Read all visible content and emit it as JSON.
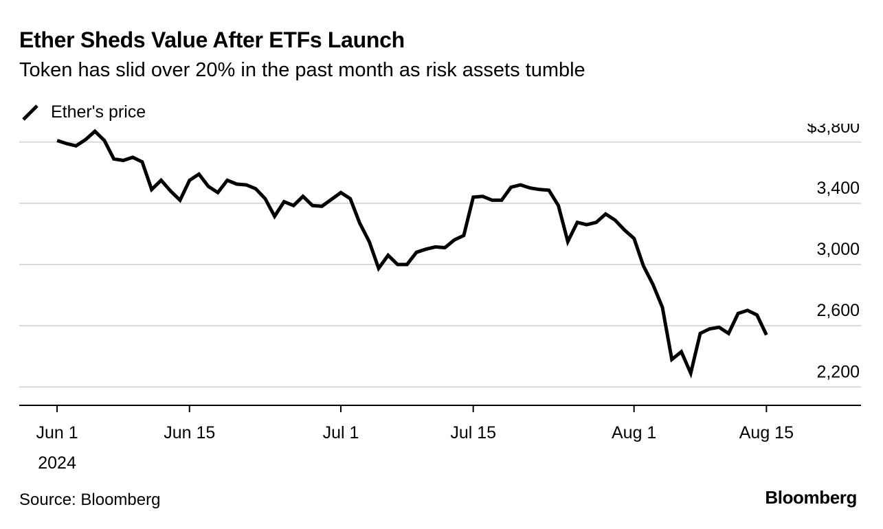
{
  "title": "Ether Sheds Value After ETFs Launch",
  "subtitle": "Token has slid over 20% in the past month as risk assets tumble",
  "legend": {
    "label": "Ether's price"
  },
  "source": "Source: Bloomberg",
  "brand": "Bloomberg",
  "colors": {
    "line": "#000000",
    "grid": "#d9d9d9",
    "axis": "#000000",
    "text": "#000000"
  },
  "chart_data": {
    "type": "line",
    "x_unit": "day",
    "x_tick_labels": [
      {
        "x": "2024-06-01",
        "label": "Jun 1",
        "sublabel": "2024"
      },
      {
        "x": "2024-06-15",
        "label": "Jun 15"
      },
      {
        "x": "2024-07-01",
        "label": "Jul 1"
      },
      {
        "x": "2024-07-15",
        "label": "Jul 15"
      },
      {
        "x": "2024-08-01",
        "label": "Aug 1"
      },
      {
        "x": "2024-08-15",
        "label": "Aug 15"
      }
    ],
    "y_ticks": [
      {
        "value": 3800,
        "label": "$3,800"
      },
      {
        "value": 3400,
        "label": "3,400"
      },
      {
        "value": 3000,
        "label": "3,000"
      },
      {
        "value": 2600,
        "label": "2,600"
      },
      {
        "value": 2200,
        "label": "2,200"
      }
    ],
    "ylim": [
      2080,
      3920
    ],
    "xlim": [
      "2024-05-28",
      "2024-08-25"
    ],
    "grid": true,
    "series": [
      {
        "name": "Ether's price",
        "points": [
          [
            "2024-06-01",
            3810
          ],
          [
            "2024-06-02",
            3790
          ],
          [
            "2024-06-03",
            3775
          ],
          [
            "2024-06-04",
            3815
          ],
          [
            "2024-06-05",
            3870
          ],
          [
            "2024-06-06",
            3810
          ],
          [
            "2024-06-07",
            3690
          ],
          [
            "2024-06-08",
            3680
          ],
          [
            "2024-06-09",
            3700
          ],
          [
            "2024-06-10",
            3670
          ],
          [
            "2024-06-11",
            3490
          ],
          [
            "2024-06-12",
            3550
          ],
          [
            "2024-06-13",
            3480
          ],
          [
            "2024-06-14",
            3420
          ],
          [
            "2024-06-15",
            3550
          ],
          [
            "2024-06-16",
            3590
          ],
          [
            "2024-06-17",
            3510
          ],
          [
            "2024-06-18",
            3470
          ],
          [
            "2024-06-19",
            3550
          ],
          [
            "2024-06-20",
            3525
          ],
          [
            "2024-06-21",
            3520
          ],
          [
            "2024-06-22",
            3495
          ],
          [
            "2024-06-23",
            3430
          ],
          [
            "2024-06-24",
            3315
          ],
          [
            "2024-06-25",
            3410
          ],
          [
            "2024-06-26",
            3385
          ],
          [
            "2024-06-27",
            3445
          ],
          [
            "2024-06-28",
            3385
          ],
          [
            "2024-06-29",
            3380
          ],
          [
            "2024-06-30",
            3425
          ],
          [
            "2024-07-01",
            3470
          ],
          [
            "2024-07-02",
            3430
          ],
          [
            "2024-07-03",
            3270
          ],
          [
            "2024-07-04",
            3150
          ],
          [
            "2024-07-05",
            2975
          ],
          [
            "2024-07-06",
            3060
          ],
          [
            "2024-07-07",
            3000
          ],
          [
            "2024-07-08",
            3000
          ],
          [
            "2024-07-09",
            3080
          ],
          [
            "2024-07-10",
            3100
          ],
          [
            "2024-07-11",
            3115
          ],
          [
            "2024-07-12",
            3110
          ],
          [
            "2024-07-13",
            3160
          ],
          [
            "2024-07-14",
            3190
          ],
          [
            "2024-07-15",
            3440
          ],
          [
            "2024-07-16",
            3445
          ],
          [
            "2024-07-17",
            3420
          ],
          [
            "2024-07-18",
            3420
          ],
          [
            "2024-07-19",
            3505
          ],
          [
            "2024-07-20",
            3520
          ],
          [
            "2024-07-21",
            3500
          ],
          [
            "2024-07-22",
            3490
          ],
          [
            "2024-07-23",
            3485
          ],
          [
            "2024-07-24",
            3385
          ],
          [
            "2024-07-25",
            3150
          ],
          [
            "2024-07-26",
            3275
          ],
          [
            "2024-07-27",
            3260
          ],
          [
            "2024-07-28",
            3275
          ],
          [
            "2024-07-29",
            3330
          ],
          [
            "2024-07-30",
            3290
          ],
          [
            "2024-07-31",
            3225
          ],
          [
            "2024-08-01",
            3170
          ],
          [
            "2024-08-02",
            2990
          ],
          [
            "2024-08-03",
            2870
          ],
          [
            "2024-08-04",
            2720
          ],
          [
            "2024-08-05",
            2380
          ],
          [
            "2024-08-06",
            2430
          ],
          [
            "2024-08-07",
            2290
          ],
          [
            "2024-08-08",
            2550
          ],
          [
            "2024-08-09",
            2580
          ],
          [
            "2024-08-10",
            2590
          ],
          [
            "2024-08-11",
            2550
          ],
          [
            "2024-08-12",
            2680
          ],
          [
            "2024-08-13",
            2700
          ],
          [
            "2024-08-14",
            2670
          ],
          [
            "2024-08-15",
            2540
          ]
        ]
      }
    ]
  }
}
